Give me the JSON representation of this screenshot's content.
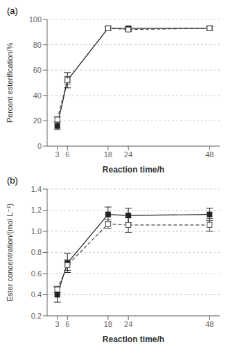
{
  "chart_data": [
    {
      "type": "line",
      "annotations": [
        "(a)"
      ],
      "x_label": "Reaction time/h",
      "y_label": "Percent esterification/%",
      "x": [
        3,
        6,
        18,
        24,
        48
      ],
      "series": [
        {
          "color": "#222222",
          "marker": "filled_square",
          "line_style": "solid",
          "values": [
            16,
            52,
            93,
            93,
            93
          ],
          "errors": [
            3,
            6,
            1.5,
            1.5,
            1.5
          ]
        },
        {
          "color": "#444444",
          "marker": "open_square",
          "line_style": "dashed",
          "values": [
            21,
            52,
            93,
            92,
            93
          ],
          "errors": [
            2,
            3,
            1.5,
            1.5,
            1.5
          ]
        }
      ],
      "xlim": [
        0,
        51
      ],
      "xticks": [
        3,
        6,
        18,
        24,
        48
      ],
      "ylim": [
        0,
        100
      ],
      "yticks": [
        0,
        20,
        40,
        60,
        80,
        100
      ],
      "grid": "y"
    },
    {
      "type": "line",
      "annotations": [
        "(b)"
      ],
      "x_label": "Reaction time/h",
      "y_label": "Ester concentration/(mol L⁻¹)",
      "x": [
        3,
        6,
        18,
        24,
        48
      ],
      "series": [
        {
          "color": "#222222",
          "marker": "filled_square",
          "line_style": "solid",
          "values": [
            0.4,
            0.7,
            1.16,
            1.15,
            1.16
          ],
          "errors": [
            0.07,
            0.09,
            0.07,
            0.07,
            0.06
          ]
        },
        {
          "color": "#444444",
          "marker": "open_square",
          "line_style": "dashed",
          "values": [
            0.45,
            0.68,
            1.07,
            1.06,
            1.06
          ],
          "errors": [
            0.03,
            0.05,
            0.04,
            0.07,
            0.06
          ]
        }
      ],
      "xlim": [
        0,
        51
      ],
      "xticks": [
        3,
        6,
        18,
        24,
        48
      ],
      "ylim": [
        0.2,
        1.4
      ],
      "yticks": [
        0.2,
        0.4,
        0.6,
        0.8,
        {
          "value": 1.0,
          "label": "1.0"
        },
        1.2,
        1.4
      ],
      "grid": "y"
    }
  ]
}
